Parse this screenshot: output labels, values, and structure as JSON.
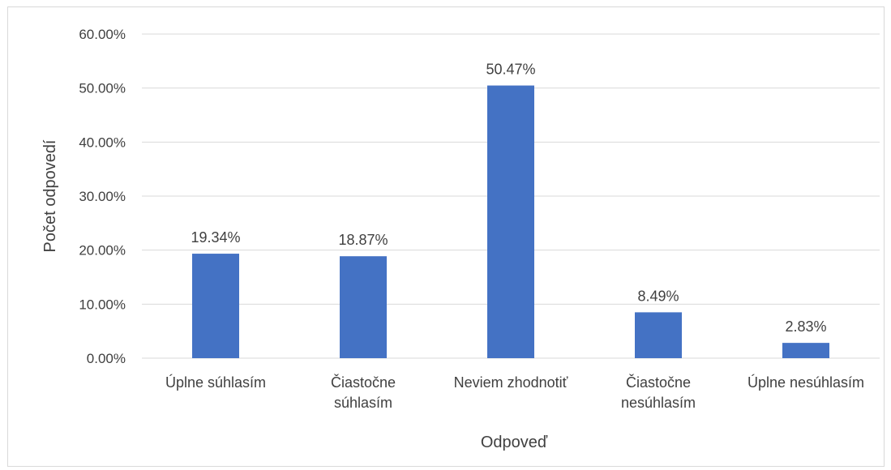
{
  "chart_data": {
    "type": "bar",
    "categories": [
      [
        "Úplne súhlasím"
      ],
      [
        "Čiastočne",
        "súhlasím"
      ],
      [
        "Neviem zhodnotiť"
      ],
      [
        "Čiastočne",
        "nesúhlasím"
      ],
      [
        "Úplne nesúhlasím"
      ]
    ],
    "values": [
      19.34,
      18.87,
      50.47,
      8.49,
      2.83
    ],
    "data_labels": [
      "19.34%",
      "18.87%",
      "50.47%",
      "8.49%",
      "2.83%"
    ],
    "y_ticks": [
      "0.00%",
      "10.00%",
      "20.00%",
      "30.00%",
      "40.00%",
      "50.00%",
      "60.00%"
    ],
    "ylim": [
      0,
      60
    ],
    "xlabel": "Odpoveď",
    "ylabel": "Počet odpovedí",
    "grid": true,
    "legend": false,
    "bar_color": "#4472C4",
    "grid_color": "#d9d9d9"
  }
}
